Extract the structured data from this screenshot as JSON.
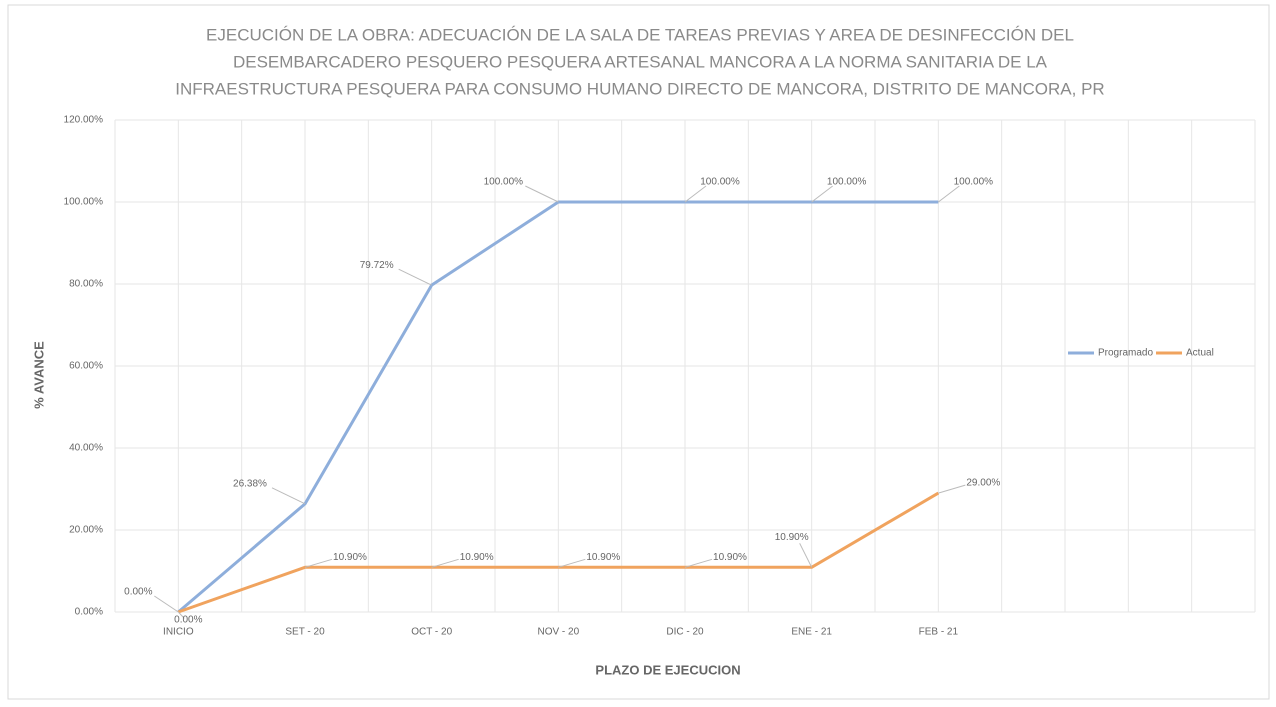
{
  "chart_data": {
    "type": "line",
    "title": [
      "EJECUCIÓN DE LA OBRA: ADECUACIÓN DE LA SALA DE TAREAS PREVIAS Y AREA DE DESINFECCIÓN DEL",
      "DESEMBARCADERO PESQUERO PESQUERA ARTESANAL MANCORA A LA NORMA SANITARIA DE LA",
      "INFRAESTRUCTURA PESQUERA PARA CONSUMO HUMANO DIRECTO DE MANCORA, DISTRITO DE MANCORA, PR"
    ],
    "x_label": "PLAZO DE EJECUCION",
    "y_label": "% AVANCE",
    "categories": [
      "INICIO",
      "SET - 20",
      "OCT - 20",
      "NOV - 20",
      "DIC - 20",
      "ENE - 21",
      "FEB - 21",
      null,
      null
    ],
    "series": [
      {
        "name": "Programado",
        "color": "#8eaedb",
        "values": [
          0,
          26.38,
          79.72,
          100,
          100,
          100,
          100,
          null,
          null
        ],
        "value_labels": [
          "0.00%",
          "26.38%",
          "79.72%",
          "100.00%",
          "100.00%",
          "100.00%",
          "100.00%",
          null,
          null
        ]
      },
      {
        "name": "Actual",
        "color": "#f0a35e",
        "values": [
          0,
          10.9,
          10.9,
          10.9,
          10.9,
          10.9,
          29,
          null,
          null
        ],
        "value_labels": [
          "0.00%",
          "10.90%",
          "10.90%",
          "10.90%",
          "10.90%",
          "10.90%",
          "29.00%",
          null,
          null
        ]
      }
    ],
    "ylim": [
      0,
      120
    ],
    "yticks": [
      {
        "value": 0,
        "label": "0.00%"
      },
      {
        "value": 20,
        "label": "20.00%"
      },
      {
        "value": 40,
        "label": "40.00%"
      },
      {
        "value": 60,
        "label": "60.00%"
      },
      {
        "value": 80,
        "label": "80.00%"
      },
      {
        "value": 100,
        "label": "100.00%"
      },
      {
        "value": 120,
        "label": "120.00%"
      }
    ],
    "grid": true,
    "legend": "right"
  }
}
